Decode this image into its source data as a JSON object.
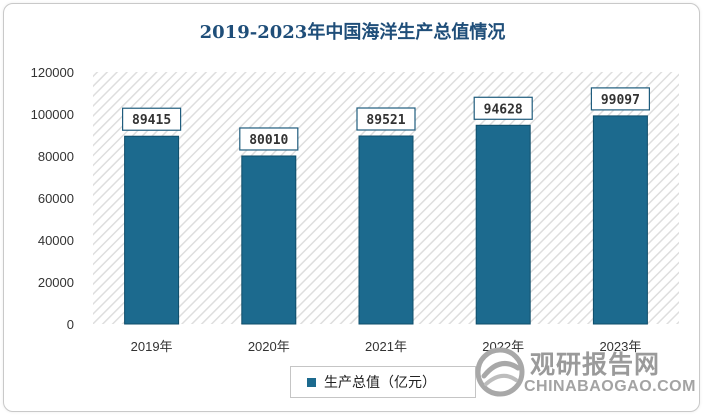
{
  "chart_data": {
    "type": "bar",
    "title": "2019-2023年中国海洋生产总值情况",
    "categories": [
      "2019年",
      "2020年",
      "2021年",
      "2022年",
      "2023年"
    ],
    "series": [
      {
        "name": "生产总值（亿元）",
        "values": [
          89415,
          80010,
          89521,
          94628,
          99097
        ]
      }
    ],
    "data_labels": [
      "89415",
      "80010",
      "89521",
      "94628",
      "99097"
    ],
    "ylim": [
      0,
      120000
    ],
    "yticks": [
      "0",
      "20000",
      "40000",
      "60000",
      "80000",
      "100000",
      "120000"
    ],
    "xlabel": "",
    "ylabel": "",
    "legend_position": "bottom",
    "colors": {
      "bar": "#1c6a8e",
      "bar_edge": "#0e4d6a",
      "hatch": "#dcdcdc",
      "label_border": "#1f5c7d"
    }
  },
  "watermark": {
    "cn": "观研报告网",
    "en": "CHINABAOGAO.COM"
  }
}
